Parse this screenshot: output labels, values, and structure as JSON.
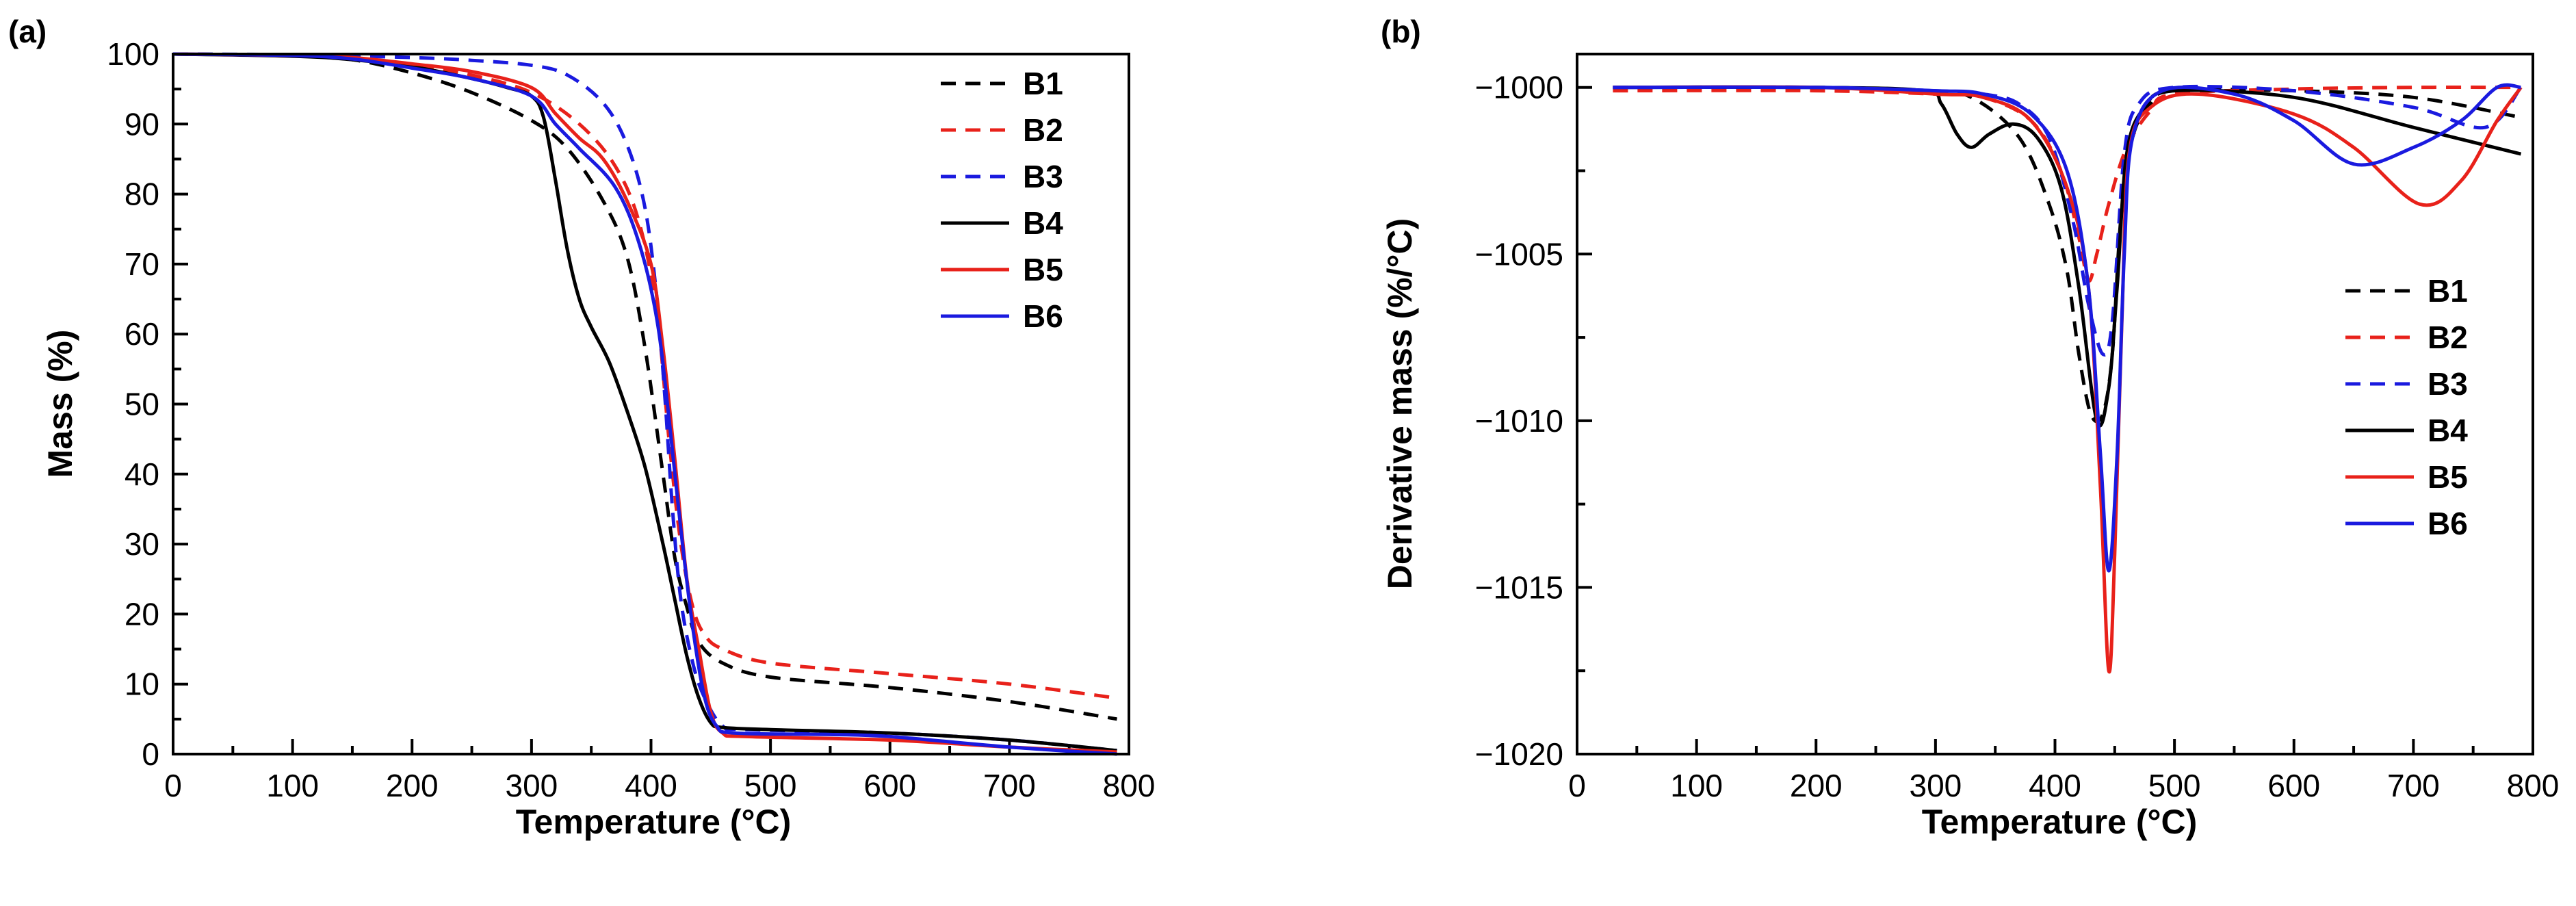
{
  "chart_data": [
    {
      "panel_label": "(a)",
      "type": "line",
      "title": "",
      "xlabel": "Temperature",
      "xlabel_unit": "(°C)",
      "ylabel": "Mass (%)",
      "xlim": [
        0,
        800
      ],
      "ylim": [
        0,
        100
      ],
      "xticks": [
        0,
        100,
        200,
        300,
        400,
        500,
        600,
        700,
        800
      ],
      "yticks": [
        0,
        10,
        20,
        30,
        40,
        50,
        60,
        70,
        80,
        90,
        100
      ],
      "legend_position": "top-right",
      "series": [
        {
          "name": "B1",
          "color": "#000000",
          "style": "dashed",
          "points": [
            [
              0,
              100
            ],
            [
              100,
              99.8
            ],
            [
              150,
              99.2
            ],
            [
              200,
              97.3
            ],
            [
              250,
              94.5
            ],
            [
              300,
              90.5
            ],
            [
              330,
              86.5
            ],
            [
              360,
              79
            ],
            [
              380,
              71
            ],
            [
              395,
              58
            ],
            [
              410,
              40
            ],
            [
              420,
              28
            ],
            [
              430,
              21
            ],
            [
              440,
              16
            ],
            [
              460,
              13
            ],
            [
              500,
              11
            ],
            [
              600,
              9.5
            ],
            [
              700,
              7.5
            ],
            [
              790,
              5
            ]
          ]
        },
        {
          "name": "B2",
          "color": "#e8211a",
          "style": "dashed",
          "points": [
            [
              0,
              100
            ],
            [
              100,
              99.8
            ],
            [
              150,
              99.4
            ],
            [
              200,
              98.5
            ],
            [
              250,
              97
            ],
            [
              300,
              94.5
            ],
            [
              340,
              90
            ],
            [
              370,
              84
            ],
            [
              390,
              76
            ],
            [
              405,
              63
            ],
            [
              415,
              45
            ],
            [
              425,
              30
            ],
            [
              435,
              21
            ],
            [
              445,
              17
            ],
            [
              460,
              15
            ],
            [
              500,
              13
            ],
            [
              600,
              11.5
            ],
            [
              700,
              10
            ],
            [
              790,
              8
            ]
          ]
        },
        {
          "name": "B3",
          "color": "#1a1adf",
          "style": "dashed",
          "points": [
            [
              0,
              100
            ],
            [
              100,
              99.9
            ],
            [
              200,
              99.5
            ],
            [
              250,
              99.1
            ],
            [
              300,
              98.4
            ],
            [
              330,
              97
            ],
            [
              360,
              93
            ],
            [
              380,
              87
            ],
            [
              395,
              78
            ],
            [
              405,
              65
            ],
            [
              412,
              50
            ],
            [
              418,
              35
            ],
            [
              425,
              22
            ],
            [
              435,
              13
            ],
            [
              445,
              8
            ],
            [
              460,
              4
            ],
            [
              480,
              3.5
            ],
            [
              600,
              3
            ],
            [
              700,
              2
            ],
            [
              790,
              0.5
            ]
          ]
        },
        {
          "name": "B4",
          "color": "#000000",
          "style": "solid",
          "points": [
            [
              0,
              100
            ],
            [
              100,
              99.7
            ],
            [
              150,
              99.2
            ],
            [
              200,
              98.2
            ],
            [
              250,
              96.5
            ],
            [
              280,
              95.2
            ],
            [
              300,
              94
            ],
            [
              310,
              91
            ],
            [
              320,
              82
            ],
            [
              330,
              72
            ],
            [
              340,
              65
            ],
            [
              350,
              61
            ],
            [
              365,
              56
            ],
            [
              380,
              49
            ],
            [
              395,
              41
            ],
            [
              410,
              30
            ],
            [
              420,
              22
            ],
            [
              430,
              14
            ],
            [
              440,
              8
            ],
            [
              450,
              4.5
            ],
            [
              460,
              3.8
            ],
            [
              500,
              3.5
            ],
            [
              600,
              3
            ],
            [
              700,
              2
            ],
            [
              790,
              0.5
            ]
          ]
        },
        {
          "name": "B5",
          "color": "#e8211a",
          "style": "solid",
          "points": [
            [
              0,
              100
            ],
            [
              100,
              99.8
            ],
            [
              150,
              99.5
            ],
            [
              200,
              98.6
            ],
            [
              250,
              97.5
            ],
            [
              300,
              95.2
            ],
            [
              320,
              91.5
            ],
            [
              340,
              88
            ],
            [
              360,
              85
            ],
            [
              380,
              79
            ],
            [
              400,
              70
            ],
            [
              410,
              58
            ],
            [
              420,
              42
            ],
            [
              430,
              25
            ],
            [
              440,
              15
            ],
            [
              450,
              6
            ],
            [
              460,
              3
            ],
            [
              480,
              2.5
            ],
            [
              600,
              2
            ],
            [
              700,
              1
            ],
            [
              790,
              0.3
            ]
          ]
        },
        {
          "name": "B6",
          "color": "#1a1adf",
          "style": "solid",
          "points": [
            [
              0,
              100
            ],
            [
              100,
              99.8
            ],
            [
              150,
              99.3
            ],
            [
              200,
              98
            ],
            [
              250,
              96.5
            ],
            [
              300,
              94
            ],
            [
              320,
              90
            ],
            [
              340,
              86.5
            ],
            [
              370,
              81
            ],
            [
              390,
              73
            ],
            [
              405,
              62
            ],
            [
              415,
              48
            ],
            [
              425,
              32
            ],
            [
              435,
              18
            ],
            [
              445,
              8
            ],
            [
              455,
              4
            ],
            [
              470,
              3
            ],
            [
              550,
              2.8
            ],
            [
              600,
              2.5
            ],
            [
              700,
              1
            ],
            [
              790,
              0
            ]
          ]
        }
      ]
    },
    {
      "panel_label": "(b)",
      "type": "line",
      "title": "",
      "xlabel": "Temperature",
      "xlabel_unit": "(°C)",
      "ylabel": "Derivative mass (%/°C)",
      "xlim": [
        0,
        800
      ],
      "ylim": [
        -1020,
        -999
      ],
      "xticks": [
        0,
        100,
        200,
        300,
        400,
        500,
        600,
        700,
        800
      ],
      "yticks": [
        -1000,
        -1005,
        -1010,
        -1015,
        -1020
      ],
      "ytick_labels": [
        "−1000",
        "−1005",
        "−1010",
        "−1015",
        "−1020"
      ],
      "legend_position": "right",
      "series": [
        {
          "name": "B1",
          "color": "#000000",
          "style": "dashed",
          "points": [
            [
              30,
              -1000
            ],
            [
              200,
              -1000
            ],
            [
              290,
              -1000.1
            ],
            [
              330,
              -1000.3
            ],
            [
              370,
              -1001.5
            ],
            [
              395,
              -1003.5
            ],
            [
              410,
              -1005.5
            ],
            [
              420,
              -1008
            ],
            [
              430,
              -1009.8
            ],
            [
              440,
              -1009.8
            ],
            [
              448,
              -1008
            ],
            [
              455,
              -1004
            ],
            [
              465,
              -1001.5
            ],
            [
              480,
              -1000.5
            ],
            [
              500,
              -1000.1
            ],
            [
              600,
              -1000.1
            ],
            [
              700,
              -1000.3
            ],
            [
              790,
              -1000.9
            ]
          ]
        },
        {
          "name": "B2",
          "color": "#e8211a",
          "style": "dashed",
          "points": [
            [
              30,
              -1000.1
            ],
            [
              200,
              -1000.1
            ],
            [
              300,
              -1000.2
            ],
            [
              340,
              -1000.3
            ],
            [
              380,
              -1001
            ],
            [
              405,
              -1002.5
            ],
            [
              420,
              -1004.5
            ],
            [
              428,
              -1005.8
            ],
            [
              435,
              -1005
            ],
            [
              445,
              -1003.5
            ],
            [
              460,
              -1001.8
            ],
            [
              480,
              -1000.7
            ],
            [
              500,
              -1000.2
            ],
            [
              600,
              -1000.05
            ],
            [
              700,
              -1000
            ],
            [
              790,
              -1000
            ]
          ]
        },
        {
          "name": "B3",
          "color": "#1a1adf",
          "style": "dashed",
          "points": [
            [
              30,
              -1000
            ],
            [
              200,
              -1000
            ],
            [
              300,
              -1000.1
            ],
            [
              340,
              -1000.2
            ],
            [
              370,
              -1000.5
            ],
            [
              395,
              -1001.5
            ],
            [
              415,
              -1004
            ],
            [
              428,
              -1006.5
            ],
            [
              440,
              -1008
            ],
            [
              448,
              -1007
            ],
            [
              458,
              -1002
            ],
            [
              470,
              -1000.5
            ],
            [
              500,
              -1000
            ],
            [
              600,
              -1000.1
            ],
            [
              700,
              -1000.6
            ],
            [
              760,
              -1001.2
            ],
            [
              790,
              -1000
            ]
          ]
        },
        {
          "name": "B4",
          "color": "#000000",
          "style": "solid",
          "points": [
            [
              30,
              -1000
            ],
            [
              200,
              -1000
            ],
            [
              290,
              -1000.1
            ],
            [
              305,
              -1000.5
            ],
            [
              318,
              -1001.4
            ],
            [
              330,
              -1001.8
            ],
            [
              345,
              -1001.4
            ],
            [
              365,
              -1001.1
            ],
            [
              385,
              -1001.5
            ],
            [
              405,
              -1003
            ],
            [
              420,
              -1006
            ],
            [
              435,
              -1010
            ],
            [
              445,
              -1009
            ],
            [
              452,
              -1006
            ],
            [
              460,
              -1002
            ],
            [
              475,
              -1000.6
            ],
            [
              500,
              -1000.1
            ],
            [
              600,
              -1000.3
            ],
            [
              700,
              -1001.2
            ],
            [
              790,
              -1002
            ]
          ]
        },
        {
          "name": "B5",
          "color": "#e8211a",
          "style": "solid",
          "points": [
            [
              30,
              -1000
            ],
            [
              200,
              -1000
            ],
            [
              300,
              -1000.2
            ],
            [
              340,
              -1000.3
            ],
            [
              380,
              -1001
            ],
            [
              410,
              -1003
            ],
            [
              428,
              -1006
            ],
            [
              438,
              -1012
            ],
            [
              445,
              -1017.5
            ],
            [
              450,
              -1014
            ],
            [
              456,
              -1007
            ],
            [
              462,
              -1002
            ],
            [
              480,
              -1000.6
            ],
            [
              520,
              -1000.2
            ],
            [
              600,
              -1000.8
            ],
            [
              650,
              -1001.8
            ],
            [
              705,
              -1003.5
            ],
            [
              740,
              -1002.8
            ],
            [
              770,
              -1001
            ],
            [
              790,
              -1000
            ]
          ]
        },
        {
          "name": "B6",
          "color": "#1a1adf",
          "style": "solid",
          "points": [
            [
              30,
              -1000
            ],
            [
              200,
              -1000
            ],
            [
              300,
              -1000.1
            ],
            [
              340,
              -1000.2
            ],
            [
              380,
              -1000.8
            ],
            [
              410,
              -1002.5
            ],
            [
              428,
              -1006
            ],
            [
              438,
              -1011
            ],
            [
              445,
              -1014.5
            ],
            [
              452,
              -1011
            ],
            [
              458,
              -1005
            ],
            [
              465,
              -1001.5
            ],
            [
              490,
              -1000.1
            ],
            [
              550,
              -1000.2
            ],
            [
              600,
              -1001
            ],
            [
              650,
              -1002.3
            ],
            [
              700,
              -1001.8
            ],
            [
              740,
              -1001
            ],
            [
              770,
              -1000
            ],
            [
              790,
              -1000
            ]
          ]
        }
      ]
    }
  ]
}
